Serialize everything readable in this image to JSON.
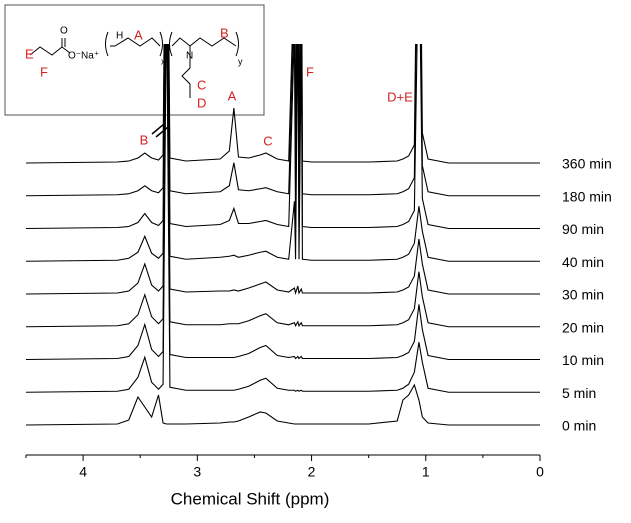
{
  "chart_data": {
    "type": "line",
    "x_label": "Chemical Shift (ppm)",
    "xlim": [
      4.5,
      0
    ],
    "xticks": [
      4,
      3,
      2,
      1,
      0
    ],
    "xminorticks": [
      4.5,
      3.5,
      2.5,
      1.5,
      0.5
    ],
    "x": [
      4.5,
      3.7,
      3.6,
      3.52,
      3.46,
      3.4,
      3.34,
      3.3,
      3.27,
      3.24,
      3.1,
      2.8,
      2.72,
      2.68,
      2.64,
      2.55,
      2.45,
      2.4,
      2.3,
      2.2,
      2.15,
      2.14,
      2.12,
      2.11,
      2.09,
      2.08,
      2.0,
      1.5,
      1.25,
      1.2,
      1.15,
      1.1,
      1.06,
      1.03,
      0.98,
      0.8,
      0
    ],
    "series": [
      {
        "name": "0 min",
        "color": "#000000",
        "values": [
          0,
          1,
          5,
          28,
          18,
          8,
          30,
          2,
          1,
          1,
          1,
          2,
          3,
          3,
          4,
          8,
          13,
          12,
          4,
          2,
          1,
          1,
          1,
          1,
          1,
          1,
          1,
          1,
          4,
          25,
          30,
          40,
          25,
          8,
          2,
          0,
          0
        ]
      },
      {
        "name": "5 min",
        "color": "#000000",
        "values": [
          0,
          1,
          3,
          15,
          35,
          10,
          3,
          8,
          400,
          5,
          2,
          2,
          2,
          2,
          3,
          6,
          12,
          14,
          4,
          2,
          2,
          1,
          2,
          1,
          2,
          1,
          1,
          1,
          2,
          4,
          8,
          20,
          50,
          30,
          4,
          0,
          0
        ]
      },
      {
        "name": "10 min",
        "color": "#000000",
        "values": [
          0,
          1,
          3,
          14,
          35,
          10,
          3,
          8,
          400,
          5,
          2,
          2,
          2,
          2,
          3,
          6,
          12,
          14,
          4,
          2,
          3,
          1,
          3,
          1,
          3,
          1,
          1,
          1,
          2,
          4,
          7,
          18,
          55,
          30,
          4,
          0,
          0
        ]
      },
      {
        "name": "20 min",
        "color": "#000000",
        "values": [
          0,
          1,
          3,
          12,
          32,
          10,
          3,
          8,
          400,
          5,
          2,
          2,
          3,
          3,
          3,
          6,
          11,
          13,
          4,
          2,
          4,
          1,
          5,
          1,
          4,
          1,
          1,
          1,
          2,
          4,
          7,
          18,
          55,
          30,
          4,
          0,
          0
        ]
      },
      {
        "name": "30 min",
        "color": "#000000",
        "values": [
          0,
          1,
          3,
          11,
          30,
          9,
          3,
          8,
          400,
          5,
          2,
          3,
          3,
          4,
          3,
          6,
          10,
          12,
          4,
          2,
          6,
          1,
          8,
          1,
          5,
          1,
          1,
          1,
          2,
          4,
          7,
          18,
          55,
          30,
          4,
          0,
          0
        ]
      },
      {
        "name": "40 min",
        "color": "#000000",
        "values": [
          0,
          1,
          3,
          9,
          25,
          8,
          3,
          8,
          400,
          5,
          2,
          4,
          5,
          6,
          4,
          6,
          9,
          10,
          4,
          2,
          60,
          2,
          250,
          2,
          220,
          2,
          1,
          1,
          2,
          4,
          7,
          18,
          55,
          30,
          4,
          0,
          0
        ]
      },
      {
        "name": "90 min",
        "color": "#000000",
        "values": [
          0,
          1,
          2,
          6,
          15,
          6,
          3,
          8,
          400,
          5,
          2,
          4,
          8,
          20,
          5,
          5,
          7,
          8,
          4,
          2,
          200,
          2,
          400,
          2,
          300,
          2,
          1,
          1,
          2,
          4,
          7,
          18,
          300,
          30,
          4,
          0,
          0
        ]
      },
      {
        "name": "180 min",
        "color": "#000000",
        "values": [
          0,
          1,
          2,
          5,
          10,
          5,
          3,
          8,
          400,
          5,
          2,
          4,
          10,
          33,
          6,
          5,
          7,
          8,
          4,
          2,
          200,
          2,
          400,
          2,
          300,
          2,
          1,
          1,
          2,
          4,
          7,
          18,
          400,
          30,
          4,
          0,
          0
        ]
      },
      {
        "name": "360 min",
        "color": "#000000",
        "values": [
          0,
          1,
          2,
          5,
          10,
          5,
          3,
          8,
          400,
          5,
          2,
          4,
          12,
          55,
          6,
          5,
          8,
          10,
          4,
          2,
          200,
          2,
          400,
          2,
          300,
          2,
          1,
          1,
          2,
          4,
          7,
          18,
          400,
          30,
          4,
          0,
          0
        ]
      }
    ],
    "annotations": [
      "B",
      "A",
      "C",
      "F",
      "D+E"
    ],
    "inset_labels": [
      "E",
      "F",
      "O",
      "O⁻Na⁺",
      "H",
      "N",
      "A",
      "B",
      "C",
      "D",
      "x",
      "y"
    ]
  }
}
